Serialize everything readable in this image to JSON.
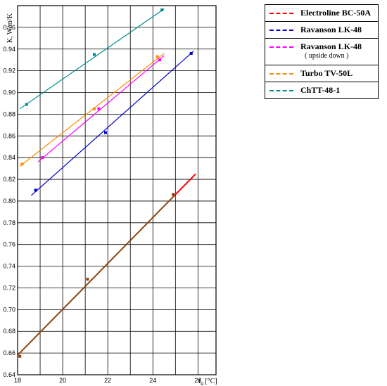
{
  "chart_data": {
    "type": "scatter",
    "xlabel": "t",
    "xlabel_sub": "a",
    "xunit": "[°C]",
    "ylabel": "K, W/m²K",
    "xlim": [
      18,
      26.8
    ],
    "ylim": [
      0.64,
      0.98
    ],
    "xticks": [
      18,
      20,
      22,
      24,
      26
    ],
    "yticks": [
      0.64,
      0.66,
      0.68,
      0.7,
      0.72,
      0.74,
      0.76,
      0.78,
      0.8,
      0.82,
      0.84,
      0.86,
      0.88,
      0.9,
      0.92,
      0.94,
      0.96
    ],
    "grid": true,
    "legend_position": "outside-right",
    "series": [
      {
        "name": "Electroline BC-50A",
        "color": "#ff0000",
        "marker_color": "#8b4513",
        "line_color": "#8b4513",
        "points": [
          [
            18.1,
            0.657
          ],
          [
            21.1,
            0.728
          ],
          [
            24.9,
            0.806
          ]
        ],
        "fit": [
          [
            18.0,
            0.658
          ],
          [
            25.9,
            0.825
          ]
        ]
      },
      {
        "name": "Ravanson LK-48",
        "color": "#0000cc",
        "points": [
          [
            18.8,
            0.81
          ],
          [
            21.9,
            0.863
          ],
          [
            25.7,
            0.936
          ]
        ],
        "fit": [
          [
            18.6,
            0.805
          ],
          [
            25.8,
            0.938
          ]
        ]
      },
      {
        "name": "Ravanson LK-48",
        "subtitle": "( upside down )",
        "color": "#ff00ff",
        "points": [
          [
            19.1,
            0.84
          ],
          [
            21.6,
            0.885
          ],
          [
            24.3,
            0.93
          ]
        ],
        "fit": [
          [
            18.9,
            0.836
          ],
          [
            24.5,
            0.934
          ]
        ]
      },
      {
        "name": "Turbo TV-50L",
        "color": "#ff8c00",
        "points": [
          [
            18.2,
            0.834
          ],
          [
            21.4,
            0.885
          ],
          [
            24.2,
            0.933
          ]
        ],
        "fit": [
          [
            18.1,
            0.832
          ],
          [
            24.5,
            0.936
          ]
        ]
      },
      {
        "name": "ChTT-48-1",
        "color": "#008b8b",
        "points": [
          [
            18.4,
            0.889
          ],
          [
            21.4,
            0.935
          ],
          [
            24.4,
            0.976
          ]
        ],
        "fit": [
          [
            18.1,
            0.885
          ],
          [
            24.5,
            0.977
          ]
        ]
      }
    ]
  }
}
